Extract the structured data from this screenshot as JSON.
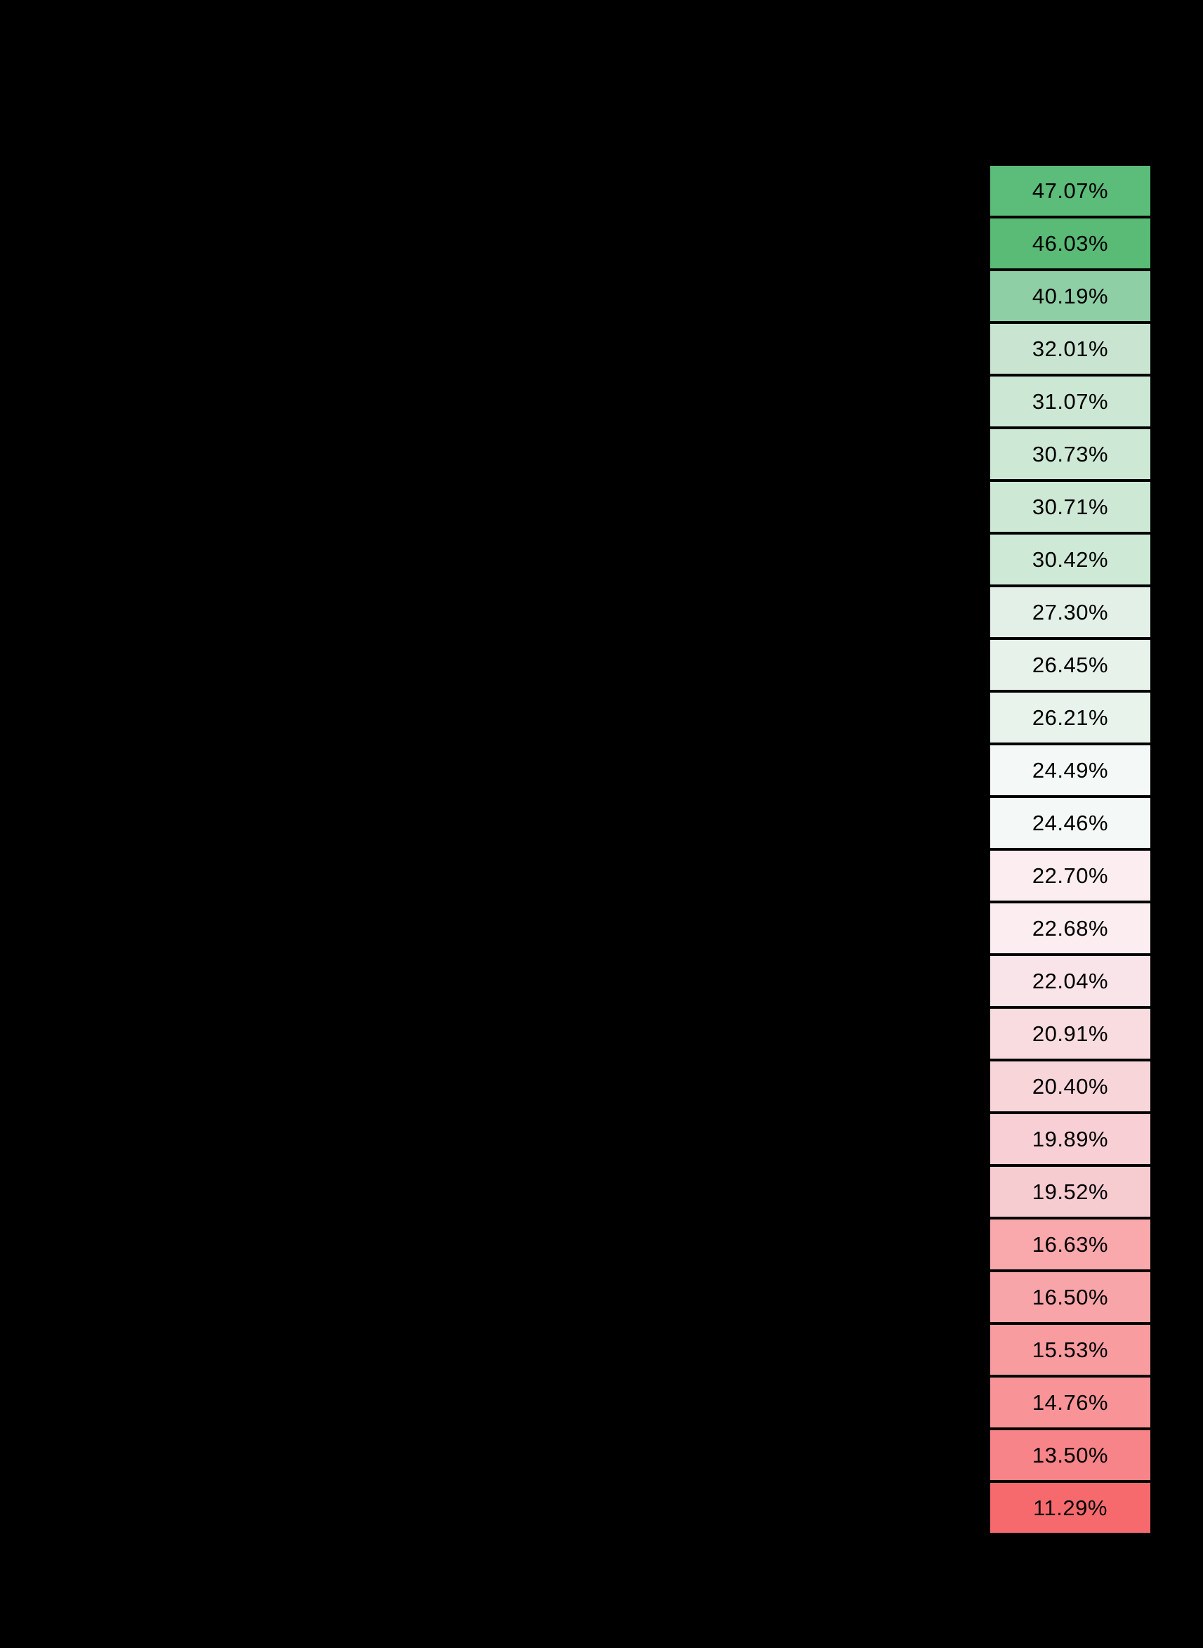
{
  "canvas": {
    "background_color": "#000000"
  },
  "heatmap_column": {
    "text_color": "#000000",
    "cells": [
      {
        "label": "47.07%",
        "color": "#5CBC79"
      },
      {
        "label": "46.03%",
        "color": "#59BB75"
      },
      {
        "label": "40.19%",
        "color": "#8FCFA5"
      },
      {
        "label": "32.01%",
        "color": "#C9E5D2"
      },
      {
        "label": "31.07%",
        "color": "#CCE7D4"
      },
      {
        "label": "30.73%",
        "color": "#CDE8D5"
      },
      {
        "label": "30.71%",
        "color": "#CDE8D5"
      },
      {
        "label": "30.42%",
        "color": "#CFE9D7"
      },
      {
        "label": "27.30%",
        "color": "#E2F0E7"
      },
      {
        "label": "26.45%",
        "color": "#E7F2EA"
      },
      {
        "label": "26.21%",
        "color": "#E8F3EB"
      },
      {
        "label": "24.49%",
        "color": "#F4F9F8"
      },
      {
        "label": "24.46%",
        "color": "#F4F9F8"
      },
      {
        "label": "22.70%",
        "color": "#FBEDF0"
      },
      {
        "label": "22.68%",
        "color": "#FBEDF0"
      },
      {
        "label": "22.04%",
        "color": "#F9E5E9"
      },
      {
        "label": "20.91%",
        "color": "#F8DCE0"
      },
      {
        "label": "20.40%",
        "color": "#F7D5D9"
      },
      {
        "label": "19.89%",
        "color": "#F7CFD4"
      },
      {
        "label": "19.52%",
        "color": "#F7CCD1"
      },
      {
        "label": "16.63%",
        "color": "#F9A8AC"
      },
      {
        "label": "16.50%",
        "color": "#F8A5A9"
      },
      {
        "label": "15.53%",
        "color": "#F89CA0"
      },
      {
        "label": "14.76%",
        "color": "#F89397"
      },
      {
        "label": "13.50%",
        "color": "#F78488"
      },
      {
        "label": "11.29%",
        "color": "#F66A6E"
      }
    ]
  },
  "chart_data": {
    "type": "heatmap",
    "orientation": "single-column vertical",
    "title": "",
    "xlabel": "",
    "ylabel": "",
    "value_format": "percent",
    "values": [
      47.07,
      46.03,
      40.19,
      32.01,
      31.07,
      30.73,
      30.71,
      30.42,
      27.3,
      26.45,
      26.21,
      24.49,
      24.46,
      22.7,
      22.68,
      22.04,
      20.91,
      20.4,
      19.89,
      19.52,
      16.63,
      16.5,
      15.53,
      14.76,
      13.5,
      11.29
    ],
    "labels": [
      "47.07%",
      "46.03%",
      "40.19%",
      "32.01%",
      "31.07%",
      "30.73%",
      "30.71%",
      "30.42%",
      "27.30%",
      "26.45%",
      "26.21%",
      "24.49%",
      "24.46%",
      "22.70%",
      "22.68%",
      "22.04%",
      "20.91%",
      "20.40%",
      "19.89%",
      "19.52%",
      "16.63%",
      "16.50%",
      "15.53%",
      "14.76%",
      "13.50%",
      "11.29%"
    ],
    "value_range": [
      11.29,
      47.07
    ],
    "colormap": {
      "style": "diverging green-white-red",
      "high_color": "#5CBC79",
      "mid_color": "#F4F9F8",
      "low_color": "#F66A6E"
    },
    "sorted": "descending",
    "grid": false,
    "legend": false
  }
}
